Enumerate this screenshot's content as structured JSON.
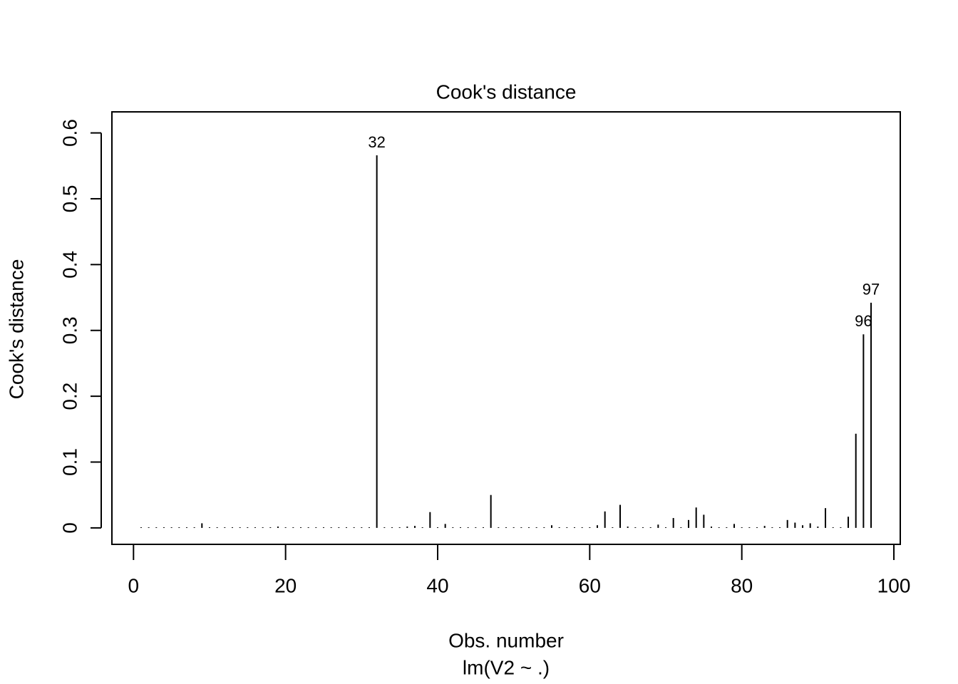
{
  "chart_data": {
    "type": "lollipop",
    "title": "Cook's distance",
    "xlabel": "Obs. number",
    "subtitle": "lm(V2 ~ .)",
    "ylabel": "Cook's distance",
    "x": [
      1,
      2,
      3,
      4,
      5,
      6,
      7,
      8,
      9,
      10,
      11,
      12,
      13,
      14,
      15,
      16,
      17,
      18,
      19,
      20,
      21,
      22,
      23,
      24,
      25,
      26,
      27,
      28,
      29,
      30,
      31,
      32,
      33,
      34,
      35,
      36,
      37,
      38,
      39,
      40,
      41,
      42,
      43,
      44,
      45,
      46,
      47,
      48,
      49,
      50,
      51,
      52,
      53,
      54,
      55,
      56,
      57,
      58,
      59,
      60,
      61,
      62,
      63,
      64,
      65,
      66,
      67,
      68,
      69,
      70,
      71,
      72,
      73,
      74,
      75,
      76,
      77,
      78,
      79,
      80,
      81,
      82,
      83,
      84,
      85,
      86,
      87,
      88,
      89,
      90,
      91,
      92,
      93,
      94,
      95,
      96,
      97
    ],
    "values": [
      0.001,
      0.001,
      0.001,
      0.001,
      0.001,
      0.001,
      0.001,
      0.001,
      0.007,
      0.001,
      0.001,
      0.001,
      0.001,
      0.001,
      0.001,
      0.001,
      0.001,
      0.001,
      0.002,
      0.001,
      0.001,
      0.001,
      0.001,
      0.001,
      0.001,
      0.001,
      0.001,
      0.001,
      0.001,
      0.001,
      0.001,
      0.566,
      0.001,
      0.001,
      0.001,
      0.002,
      0.003,
      0.001,
      0.024,
      0.001,
      0.006,
      0.001,
      0.001,
      0.001,
      0.001,
      0.001,
      0.05,
      0.001,
      0.001,
      0.001,
      0.001,
      0.001,
      0.001,
      0.001,
      0.004,
      0.001,
      0.001,
      0.001,
      0.001,
      0.001,
      0.004,
      0.025,
      0.001,
      0.035,
      0.002,
      0.001,
      0.001,
      0.001,
      0.005,
      0.001,
      0.015,
      0.001,
      0.012,
      0.031,
      0.02,
      0.002,
      0.001,
      0.001,
      0.006,
      0.001,
      0.001,
      0.001,
      0.003,
      0.001,
      0.001,
      0.012,
      0.008,
      0.004,
      0.007,
      0.002,
      0.03,
      0.001,
      0.001,
      0.017,
      0.143,
      0.294,
      0.342
    ],
    "color": "#000000",
    "annotations": [
      {
        "x": 32,
        "label": "32"
      },
      {
        "x": 96,
        "label": "96"
      },
      {
        "x": 97,
        "label": "97"
      }
    ],
    "xlim": [
      -2.84,
      100.84
    ],
    "ylim": [
      -0.025,
      0.632
    ],
    "xticks": [
      0,
      20,
      40,
      60,
      80,
      100
    ],
    "yticks": [
      0,
      {
        "value": 0.1,
        "label": "0.1"
      },
      {
        "value": 0.2,
        "label": "0.2"
      },
      {
        "value": 0.3,
        "label": "0.3"
      },
      {
        "value": 0.4,
        "label": "0.4"
      },
      {
        "value": 0.5,
        "label": "0.5"
      },
      {
        "value": 0.6,
        "label": "0.6"
      }
    ],
    "grid": false
  }
}
